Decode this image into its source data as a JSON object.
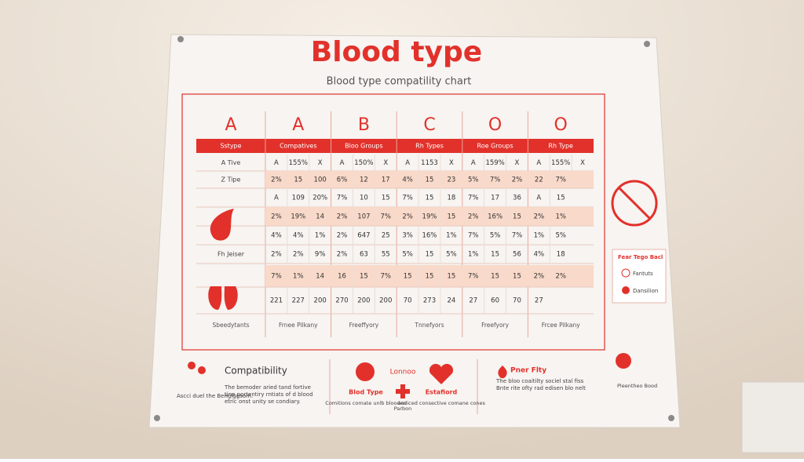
{
  "title": "Blood type",
  "subtitle": "Blood type compatility chart",
  "table": {
    "headers": [
      "A",
      "A",
      "B",
      "C",
      "O",
      "O"
    ],
    "bar_labels": [
      "Sstype",
      "Compatives",
      "Bloo Groups",
      "Rh Types",
      "Roe Groups",
      "Rh Type"
    ],
    "rows": [
      {
        "label": "A Tive",
        "cells": [
          "A",
          "155%",
          "X",
          "A",
          "150%",
          "X",
          "A",
          "1153",
          "X",
          "A",
          "159%",
          "X",
          "A",
          "155%",
          "X"
        ]
      },
      {
        "label": "Z Tipe",
        "cells": [
          "2%",
          "15",
          "100",
          "6%",
          "12",
          "17",
          "4%",
          "15",
          "23",
          "5%",
          "7%",
          "2%",
          "22",
          "7%"
        ]
      },
      {
        "cells": [
          "A",
          "109",
          "20%",
          "7%",
          "10",
          "15",
          "7%",
          "15",
          "18",
          "7%",
          "17",
          "36",
          "A",
          "15"
        ]
      },
      {
        "cells": [
          "2%",
          "19%",
          "14",
          "2%",
          "107",
          "7%",
          "2%",
          "19%",
          "15",
          "2%",
          "16%",
          "15",
          "2%",
          "1%"
        ]
      },
      {
        "cells": [
          "4%",
          "4%",
          "1%",
          "2%",
          "647",
          "25",
          "3%",
          "16%",
          "1%",
          "7%",
          "5%",
          "7%",
          "1%",
          "5%"
        ]
      },
      {
        "label": "Fh Jeiser",
        "cells": [
          "2%",
          "2%",
          "9%",
          "2%",
          "63",
          "55",
          "5%",
          "15",
          "5%",
          "1%",
          "15",
          "56",
          "4%",
          "18"
        ]
      },
      {
        "cells": [
          "7%",
          "1%",
          "14",
          "16",
          "15",
          "7%",
          "15",
          "15",
          "15",
          "7%",
          "15",
          "15",
          "2%",
          "2%"
        ]
      },
      {
        "cells": [
          "221",
          "227",
          "200",
          "270",
          "200",
          "200",
          "70",
          "273",
          "24",
          "27",
          "60",
          "70",
          "27"
        ]
      }
    ],
    "footer": [
      "Sbeedytants",
      "Frnee Pilkany",
      "Freeffyory",
      "Tnnefyors",
      "Freefyory",
      "Frcee Pilkany"
    ]
  },
  "legend": {
    "title": "Fear Tego Bacl",
    "items": [
      "Fantuts",
      "Dansilion"
    ]
  },
  "bottom": {
    "left": {
      "title": "Compatibility",
      "caption": "Ascci duel the Bengiggsom.",
      "text": "The bemoder aried tand fortive tine portentiry rntiats of d blood etric onst unity se condiary."
    },
    "middle": {
      "title": "Lonnoo",
      "items": [
        {
          "label": "Blod Type",
          "text": "Comitions comate unlb blooden"
        },
        {
          "label": "Parbon"
        },
        {
          "label": "Estafiord",
          "text": "andiced consective comane cones"
        }
      ]
    },
    "right": {
      "title": "Pner Flty",
      "text": "The bloo coaitilty sociel stal fiss Bnte rite ofty rad edisen blo nelt",
      "note": "Pleentheo Bood"
    }
  }
}
